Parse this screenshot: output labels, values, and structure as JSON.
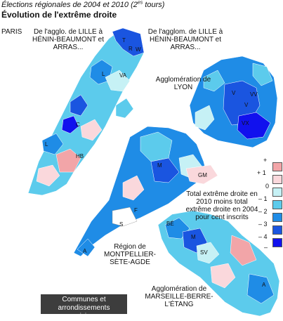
{
  "title": {
    "line1_prefix": "Élections régionales de 2004 et 2010 (2",
    "line1_sup": "es",
    "line1_suffix": " tours)",
    "line2": "Évolution de l'extrême droite"
  },
  "region_labels": {
    "paris": "PARIS",
    "lille_left": "De l'agglo. de LILLE à HÉNIN-BEAUMONT et ARRAS...",
    "lille_right": "De l'agglom. de LILLE à HÉNIN-BEAUMONT et ARRAS...",
    "lyon": "Agglomération de LYON",
    "montpellier": "Région de MONTPELLIER-SÈTE-AGDE",
    "marseille": "Agglomération de MARSEILLE-BERRE-L'ÉTANG"
  },
  "place_codes": [
    "T",
    "R",
    "W",
    "L",
    "VA",
    "C",
    "L",
    "HB",
    "V",
    "VV",
    "V",
    "VX",
    "M",
    "GM",
    "F",
    "S",
    "A",
    "BÉ",
    "M",
    "SV",
    "A"
  ],
  "legend": {
    "title": "Total extrême droite en 2010 moins total extrême droite en 2004 pour cent inscrits",
    "ticks": [
      "+",
      "+ 1",
      "0",
      "– 1",
      "– 2",
      "– 3",
      "– 4",
      "–"
    ],
    "colors": [
      "#f2a5a8",
      "#fad8dc",
      "#c6f1f5",
      "#5ccbec",
      "#1f8ce6",
      "#1a55e0",
      "#1111ee"
    ]
  },
  "footer_note": "Communes et arrondissements municipaux"
}
